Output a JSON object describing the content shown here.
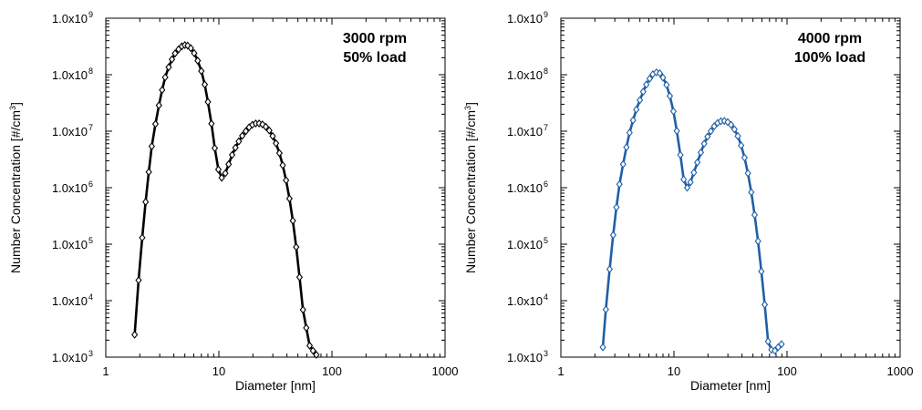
{
  "chart_data": [
    {
      "type": "line",
      "panel": "left",
      "annotation": [
        "3000 rpm",
        "50% load"
      ],
      "xlabel": "Diameter [nm]",
      "ylabel_prefix": "Number Concentration [#/cm",
      "ylabel_sup": "3",
      "ylabel_suffix": "]",
      "xscale": "log",
      "yscale": "log",
      "xlim": [
        1,
        1000
      ],
      "ylim": [
        1000,
        1000000000
      ],
      "xticks": [
        {
          "value": 1,
          "label": "1"
        },
        {
          "value": 10,
          "label": "10"
        },
        {
          "value": 100,
          "label": "100"
        },
        {
          "value": 1000,
          "label": "1000"
        }
      ],
      "yticks": [
        {
          "value": 1000,
          "mantissa": "1.0x10",
          "exp": "3"
        },
        {
          "value": 10000,
          "mantissa": "1.0x10",
          "exp": "4"
        },
        {
          "value": 100000,
          "mantissa": "1.0x10",
          "exp": "5"
        },
        {
          "value": 1000000,
          "mantissa": "1.0x10",
          "exp": "6"
        },
        {
          "value": 10000000,
          "mantissa": "1.0x10",
          "exp": "7"
        },
        {
          "value": 100000000,
          "mantissa": "1.0x10",
          "exp": "8"
        },
        {
          "value": 1000000000,
          "mantissa": "1.0x10",
          "exp": "9"
        }
      ],
      "color": "#000000",
      "marker": "diamond-open",
      "series": [
        {
          "x": [
            1.8,
            1.95,
            2.1,
            2.25,
            2.4,
            2.55,
            2.75,
            2.95,
            3.15,
            3.35,
            3.6,
            3.85,
            4.1,
            4.4,
            4.7,
            5.0,
            5.3,
            5.65,
            6.05,
            6.5,
            7.0,
            7.5,
            8.0,
            8.6,
            9.2,
            9.9,
            10.6,
            11.4,
            12.2,
            13.1,
            14.0,
            15.0,
            16.1,
            17.3,
            18.5,
            19.8,
            21.2,
            22.7,
            24.3,
            26.0,
            27.9,
            29.9,
            32.0,
            34.3,
            36.7,
            39.3,
            42.1,
            45.1,
            48.3,
            51.7,
            55.4,
            59.3,
            63.5,
            68.0,
            72.8
          ],
          "y": [
            2500.0,
            23000.0,
            130000.0,
            560000.0,
            1900000.0,
            5400000.0,
            13400000.0,
            28700000.0,
            53600000.0,
            90000000.0,
            136000000.0,
            187000000.0,
            238000000.0,
            282000000.0,
            318000000.0,
            335000000.0,
            328000000.0,
            295000000.0,
            241000000.0,
            177000000.0,
            116000000.0,
            67000000.0,
            33000000.0,
            13600000.0,
            5000000.0,
            2100000.0,
            1500000.0,
            1800000.0,
            2600000.0,
            3800000.0,
            5100000.0,
            6600000.0,
            8300000.0,
            10000000.0,
            11700000.0,
            13000000.0,
            13700000.0,
            13700000.0,
            13200000.0,
            12000000.0,
            10300000.0,
            8200000.0,
            6100000.0,
            4100000.0,
            2500000.0,
            1350000.0,
            640000.0,
            260000.0,
            89000.0,
            26000.0,
            6900.0,
            3300.0,
            1600.0,
            1300.0,
            1100.0
          ]
        }
      ]
    },
    {
      "type": "line",
      "panel": "right",
      "annotation": [
        "4000 rpm",
        "100% load"
      ],
      "xlabel": "Diameter [nm]",
      "ylabel_prefix": "Number Concentration [#/cm",
      "ylabel_sup": "3",
      "ylabel_suffix": "]",
      "xscale": "log",
      "yscale": "log",
      "xlim": [
        1,
        1000
      ],
      "ylim": [
        1000,
        1000000000
      ],
      "xticks": [
        {
          "value": 1,
          "label": "1"
        },
        {
          "value": 10,
          "label": "10"
        },
        {
          "value": 100,
          "label": "100"
        },
        {
          "value": 1000,
          "label": "1000"
        }
      ],
      "yticks": [
        {
          "value": 1000,
          "mantissa": "1.0x10",
          "exp": "3"
        },
        {
          "value": 10000,
          "mantissa": "1.0x10",
          "exp": "4"
        },
        {
          "value": 100000,
          "mantissa": "1.0x10",
          "exp": "5"
        },
        {
          "value": 1000000,
          "mantissa": "1.0x10",
          "exp": "6"
        },
        {
          "value": 10000000,
          "mantissa": "1.0x10",
          "exp": "7"
        },
        {
          "value": 100000000,
          "mantissa": "1.0x10",
          "exp": "8"
        },
        {
          "value": 1000000000,
          "mantissa": "1.0x10",
          "exp": "9"
        }
      ],
      "color": "#1f5fa5",
      "marker": "diamond-open",
      "series": [
        {
          "x": [
            2.35,
            2.5,
            2.7,
            2.9,
            3.1,
            3.3,
            3.55,
            3.8,
            4.05,
            4.35,
            4.65,
            5.0,
            5.35,
            5.7,
            6.1,
            6.5,
            7.0,
            7.5,
            8.0,
            8.6,
            9.2,
            9.9,
            10.6,
            11.4,
            12.2,
            13.1,
            14.0,
            15.0,
            16.1,
            17.3,
            18.5,
            19.8,
            21.2,
            22.7,
            24.3,
            26.0,
            27.9,
            29.9,
            32.0,
            34.3,
            36.7,
            39.3,
            42.1,
            45.1,
            48.3,
            51.7,
            55.4,
            59.3,
            63.5,
            68.0,
            72.8,
            78.0,
            83.5,
            89.4
          ],
          "y": [
            1500.0,
            7000.0,
            36000.0,
            145000.0,
            450000.0,
            1150000.0,
            2600000.0,
            5200000.0,
            9400000.0,
            15600000.0,
            24200000.0,
            35500000.0,
            50000000.0,
            67000000.0,
            85000000.0,
            102000000.0,
            110000000.0,
            106000000.0,
            89000000.0,
            66000000.0,
            42000000.0,
            22500000.0,
            10100000.0,
            3800000.0,
            1400000.0,
            1000000.0,
            1250000.0,
            1850000.0,
            2800000.0,
            4200000.0,
            6000000.0,
            8000000.0,
            10000000.0,
            12200000.0,
            14000000.0,
            15000000.0,
            15200000.0,
            14500000.0,
            13000000.0,
            10800000.0,
            8200000.0,
            5600000.0,
            3400000.0,
            1800000.0,
            830000.0,
            330000.0,
            113000.0,
            33000.0,
            8500.0,
            1900.0,
            1350.0,
            1300.0,
            1500.0,
            1700.0
          ]
        }
      ]
    }
  ]
}
